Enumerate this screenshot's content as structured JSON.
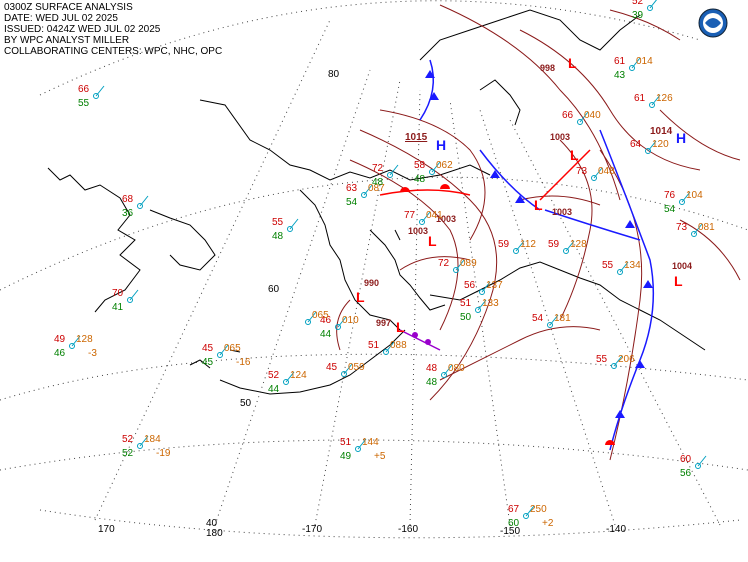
{
  "header": {
    "line1": "0300Z SURFACE ANALYSIS",
    "line2": "DATE: WED JUL 02 2025",
    "line3": "ISSUED: 0424Z WED JUL 02 2025",
    "line4": "BY WPC ANALYST MILLER",
    "line5": "COLLABORATING CENTERS: WPC, NHC, OPC"
  },
  "colors": {
    "isobar": "#8b1a1a",
    "highs": "#1a1aff",
    "lows": "#ff0000",
    "temperature": "#cc0000",
    "dewpoint": "#008000",
    "pressure": "#cc6600",
    "station": "#00a0c0",
    "coast": "#000000",
    "grid": "#555555",
    "front_cold": "#1a1aff",
    "front_warm": "#ff0000",
    "front_occluded": "#9900cc"
  },
  "grid_labels": {
    "lat": [
      "80",
      "60",
      "50"
    ],
    "lon": [
      "170",
      "180",
      "-170",
      "-160",
      "-150",
      "-140"
    ],
    "lon_extra": "40"
  },
  "pressure_centers": [
    {
      "type": "H",
      "value": "1015",
      "color": "blue"
    },
    {
      "type": "H",
      "value": "1014",
      "color": "blue"
    },
    {
      "type": "L",
      "value": "998",
      "color": "red"
    },
    {
      "type": "L",
      "value": "1003",
      "color": "red"
    },
    {
      "type": "L",
      "value": "1003",
      "color": "red"
    },
    {
      "type": "L",
      "value": "1003",
      "color": "red"
    },
    {
      "type": "L",
      "value": "1003",
      "color": "red"
    },
    {
      "type": "L",
      "value": "990",
      "color": "red"
    },
    {
      "type": "L",
      "value": "997",
      "color": "red"
    },
    {
      "type": "L",
      "value": "1004",
      "color": "red"
    }
  ],
  "stations": [
    {
      "t": "66",
      "d": "55"
    },
    {
      "t": "68",
      "d": "36"
    },
    {
      "t": "70",
      "d": "41"
    },
    {
      "t": "49",
      "d": "46",
      "p": "128",
      "tend": "-3"
    },
    {
      "t": "45",
      "d": "45",
      "p": "065",
      "tend": "-16"
    },
    {
      "t": "52",
      "d": "44",
      "p": "124"
    },
    {
      "t": "52",
      "d": "52",
      "p": "184",
      "tend": "-19"
    },
    {
      "t": "51",
      "d": "49",
      "p": "144",
      "tend": "+5"
    },
    {
      "t": "67",
      "d": "60",
      "p": "250",
      "tend": "+2"
    },
    {
      "t": "60",
      "d": "56"
    },
    {
      "t": "55",
      "d": "48"
    },
    {
      "t": "63",
      "d": "54",
      "p": "087"
    },
    {
      "t": "72",
      "d": "48"
    },
    {
      "t": "58",
      "d": "48",
      "p": "062"
    },
    {
      "t": "77",
      "d": "",
      "p": "041"
    },
    {
      "t": "72",
      "d": "",
      "p": "089"
    },
    {
      "t": "46",
      "d": "44",
      "p": "010"
    },
    {
      "t": "45",
      "d": "",
      "p": "059"
    },
    {
      "t": "48",
      "d": "48",
      "p": "080"
    },
    {
      "t": "51",
      "d": "50",
      "p": "133"
    },
    {
      "t": "54",
      "d": "",
      "p": "181"
    },
    {
      "t": "55",
      "d": "",
      "p": "206"
    },
    {
      "t": "59",
      "d": "",
      "p": "112"
    },
    {
      "t": "59",
      "d": "",
      "p": "128"
    },
    {
      "t": "55",
      "d": "",
      "p": "134"
    },
    {
      "t": "73",
      "d": "",
      "p": "048"
    },
    {
      "t": "66",
      "d": "",
      "p": "040"
    },
    {
      "t": "61",
      "d": "",
      "p": "126"
    },
    {
      "t": "64",
      "d": "",
      "p": "120"
    },
    {
      "t": "76",
      "d": "54",
      "p": "104"
    },
    {
      "t": "73",
      "d": "",
      "p": "081"
    },
    {
      "t": "61",
      "d": "43",
      "p": "014"
    },
    {
      "t": "52",
      "d": "39"
    },
    {
      "t": "56",
      "d": "",
      "p": "137"
    },
    {
      "t": "",
      "d": "",
      "p": "065"
    },
    {
      "t": "51",
      "d": "",
      "p": "088"
    }
  ]
}
